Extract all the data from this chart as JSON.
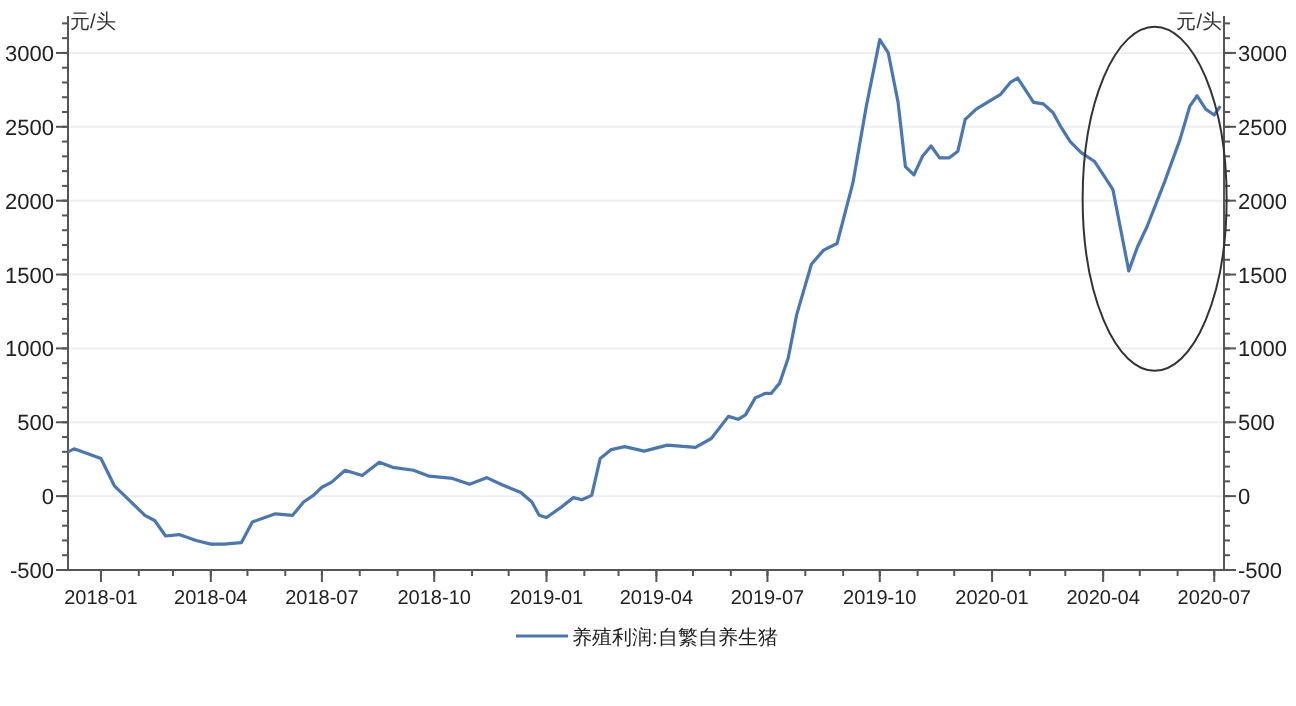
{
  "chart_data": {
    "type": "line",
    "ylabel": "元/头",
    "y2label": "元/头",
    "xlim": [
      "2017-12-05",
      "2020-07-09"
    ],
    "xticks": [
      "2018-01",
      "2018-04",
      "2018-07",
      "2018-10",
      "2019-01",
      "2019-04",
      "2019-07",
      "2019-10",
      "2020-01",
      "2020-04",
      "2020-07"
    ],
    "ylim": [
      -500,
      3250
    ],
    "yticks": [
      -500,
      0,
      500,
      1000,
      1500,
      2000,
      2500,
      3000
    ],
    "y2lim": [
      -500,
      3250
    ],
    "y2ticks": [
      -500,
      0,
      500,
      1000,
      1500,
      2000,
      2500,
      3000
    ],
    "grid": "y",
    "legend": "bottom",
    "marker": "none",
    "line_style": "solid",
    "series": [
      {
        "name": "养殖利润:自繁自养生猪",
        "color": "#4a77b4",
        "x": [
          "2017-12-05",
          "2017-12-10",
          "2018-01-01",
          "2018-01-12",
          "2018-02-06",
          "2018-02-14",
          "2018-02-23",
          "2018-03-06",
          "2018-03-20",
          "2018-04-01",
          "2018-04-12",
          "2018-04-26",
          "2018-05-05",
          "2018-05-24",
          "2018-06-07",
          "2018-06-16",
          "2018-06-24",
          "2018-07-01",
          "2018-07-09",
          "2018-07-20",
          "2018-08-03",
          "2018-08-17",
          "2018-08-28",
          "2018-09-14",
          "2018-09-27",
          "2018-10-16",
          "2018-10-30",
          "2018-11-13",
          "2018-11-26",
          "2018-12-11",
          "2018-12-20",
          "2018-12-26",
          "2019-01-01",
          "2019-01-13",
          "2019-01-23",
          "2019-01-30",
          "2019-02-07",
          "2019-02-14",
          "2019-02-23",
          "2019-03-06",
          "2019-03-22",
          "2019-04-10",
          "2019-05-03",
          "2019-05-16",
          "2019-05-30",
          "2019-06-07",
          "2019-06-13",
          "2019-06-21",
          "2019-06-29",
          "2019-07-04",
          "2019-07-11",
          "2019-07-18",
          "2019-07-25",
          "2019-08-06",
          "2019-08-16",
          "2019-08-27",
          "2019-09-09",
          "2019-09-20",
          "2019-10-01",
          "2019-10-08",
          "2019-10-16",
          "2019-10-22",
          "2019-10-29",
          "2019-11-05",
          "2019-11-12",
          "2019-11-19",
          "2019-11-27",
          "2019-12-04",
          "2019-12-10",
          "2019-12-19",
          "2020-01-08",
          "2020-01-16",
          "2020-01-22",
          "2020-02-04",
          "2020-02-12",
          "2020-02-20",
          "2020-02-26",
          "2020-03-05",
          "2020-03-14",
          "2020-03-25",
          "2020-04-02",
          "2020-04-09",
          "2020-04-22",
          "2020-04-29",
          "2020-05-07",
          "2020-05-21",
          "2020-06-03",
          "2020-06-11",
          "2020-06-17",
          "2020-06-24",
          "2020-07-01",
          "2020-07-06"
        ],
        "values": [
          300,
          320,
          255,
          70,
          -130,
          -165,
          -270,
          -260,
          -300,
          -325,
          -325,
          -315,
          -175,
          -120,
          -130,
          -40,
          5,
          60,
          95,
          175,
          140,
          230,
          195,
          175,
          135,
          120,
          80,
          125,
          75,
          25,
          -40,
          -130,
          -145,
          -75,
          -10,
          -25,
          5,
          255,
          315,
          335,
          305,
          345,
          330,
          390,
          540,
          520,
          550,
          665,
          695,
          695,
          765,
          935,
          1230,
          1570,
          1665,
          1710,
          2120,
          2640,
          3090,
          3000,
          2665,
          2230,
          2175,
          2300,
          2370,
          2290,
          2290,
          2335,
          2550,
          2620,
          2720,
          2800,
          2830,
          2665,
          2655,
          2595,
          2505,
          2400,
          2325,
          2265,
          2165,
          2075,
          1525,
          1685,
          1825,
          2120,
          2415,
          2640,
          2710,
          2620,
          2580,
          2640
        ]
      }
    ]
  }
}
